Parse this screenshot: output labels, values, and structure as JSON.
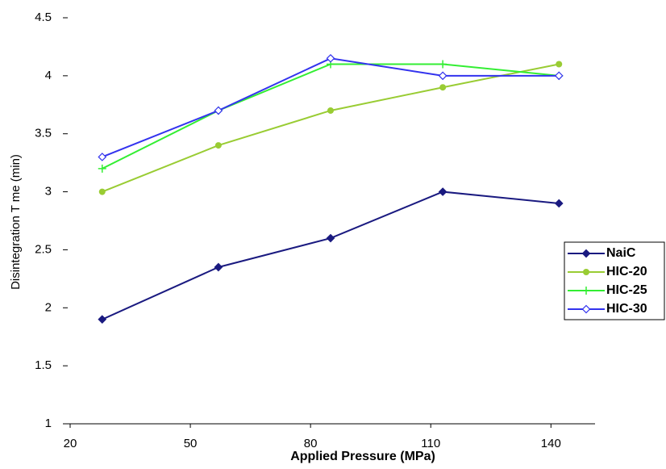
{
  "chart_data": {
    "type": "line",
    "x_label": "Applied Pressure (MPa)",
    "y_label": "Disintegration T me (min)",
    "x": [
      28,
      57,
      85,
      113,
      142
    ],
    "xlim": [
      20,
      150
    ],
    "xticks": [
      20,
      50,
      80,
      110,
      140
    ],
    "ylim": [
      1,
      4.5
    ],
    "yticks": [
      1,
      1.5,
      2,
      2.5,
      3,
      3.5,
      4,
      4.5
    ],
    "legend": "right",
    "series": [
      {
        "name": "NaiC",
        "color": "#1a1a80",
        "marker": "diamond",
        "values": [
          1.9,
          2.35,
          2.6,
          3.0,
          2.9
        ]
      },
      {
        "name": "HIC-20",
        "color": "#99cc33",
        "marker": "circle",
        "values": [
          3.0,
          3.4,
          3.7,
          3.9,
          4.1
        ]
      },
      {
        "name": "HIC-25",
        "color": "#33ee33",
        "marker": "plus",
        "values": [
          3.2,
          3.7,
          4.1,
          4.1,
          4.0
        ]
      },
      {
        "name": "HIC-30",
        "color": "#3333ee",
        "marker": "open-diamond",
        "values": [
          3.3,
          3.7,
          4.15,
          4.0,
          4.0
        ]
      }
    ]
  }
}
